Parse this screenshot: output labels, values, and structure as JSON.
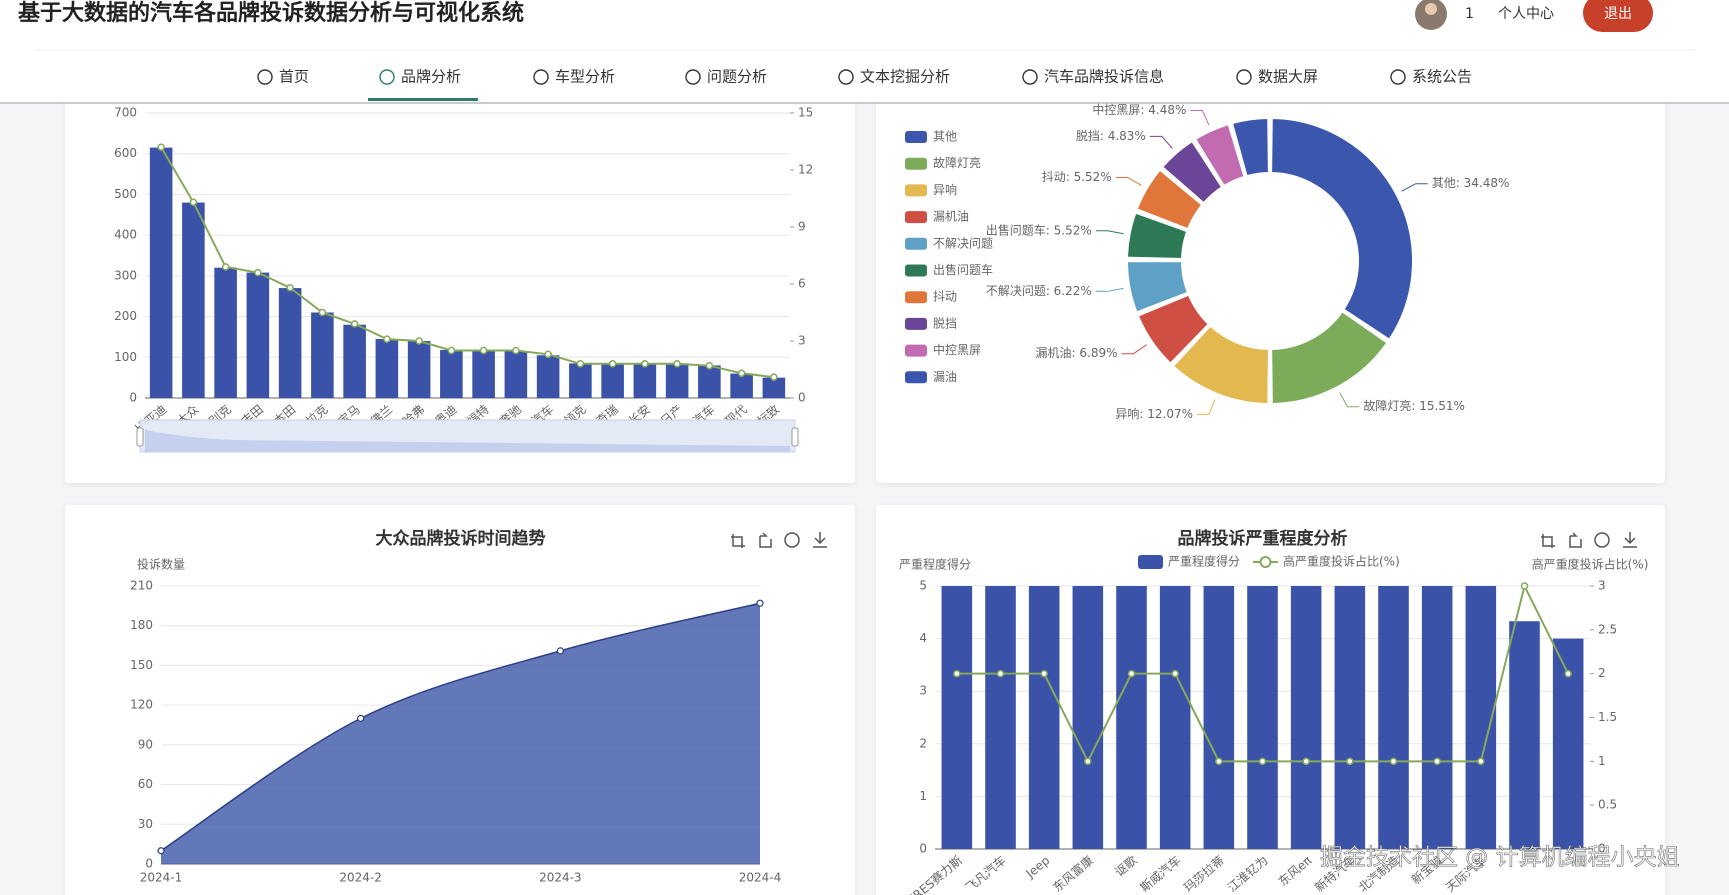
{
  "header": {
    "title": "基于大数据的汽车各品牌投诉数据分析与可视化系统",
    "user": "1",
    "profile": "个人中心",
    "logout": "退出"
  },
  "nav": [
    "首页",
    "品牌分析",
    "车型分析",
    "问题分析",
    "文本挖掘分析",
    "汽车品牌投诉信息",
    "数据大屏",
    "系统公告"
  ],
  "nav_active": 1,
  "watermark": "掘金技术社区 @ 计算机编程小央姐",
  "chart_data": [
    {
      "type": "bar",
      "categories": [
        "比亚迪",
        "大众",
        "别克",
        "丰田",
        "本田",
        "凯迪拉克",
        "宝马",
        "雪佛兰",
        "哈弗",
        "奥迪",
        "福特",
        "奔驰",
        "五菱汽车",
        "领克",
        "奇瑞",
        "长安",
        "日产",
        "吉利汽车",
        "现代",
        "标致"
      ],
      "series": [
        {
          "color": "#3a52a8",
          "values": [
            615,
            480,
            320,
            308,
            270,
            210,
            180,
            145,
            140,
            118,
            115,
            115,
            105,
            85,
            85,
            85,
            85,
            80,
            60,
            50
          ]
        },
        {
          "type": "line",
          "axis": "y2",
          "color": "#86a85a",
          "values": [
            13.2,
            10.3,
            6.9,
            6.6,
            5.8,
            4.5,
            3.9,
            3.1,
            3.0,
            2.5,
            2.5,
            2.5,
            2.3,
            1.8,
            1.8,
            1.8,
            1.8,
            1.7,
            1.3,
            1.1
          ]
        }
      ],
      "ylim": [
        0,
        700
      ],
      "yticks": [
        0,
        100,
        200,
        300,
        400,
        500,
        600,
        700
      ],
      "y2lim": [
        0,
        15
      ],
      "y2ticks": [
        0,
        3,
        6,
        9,
        12,
        15
      ],
      "grid": true,
      "zoom_slider": true
    },
    {
      "type": "pie",
      "hole": true,
      "categories": [
        "其他",
        "故障灯亮",
        "异响",
        "漏机油",
        "不解决问题",
        "出售问题车",
        "抖动",
        "脱挡",
        "中控黑屏",
        "漏油"
      ],
      "values": [
        34.48,
        15.51,
        12.07,
        6.89,
        6.22,
        5.52,
        5.52,
        4.83,
        4.48,
        4.48
      ],
      "value_labels": [
        "其他: 34.48%",
        "故障灯亮: 15.51%",
        "异响: 12.07%",
        "漏机油: 6.89%",
        "不解决问题: 6.22%",
        "出售问题车: 5.52%",
        "抖动: 5.52%",
        "脱挡: 4.83%",
        "中控黑屏: 4.48%",
        null
      ],
      "colors": [
        "#3a57ad",
        "#7cab5a",
        "#e3b84f",
        "#d04f45",
        "#5fa0c6",
        "#2e7a56",
        "#e0763a",
        "#6b4597",
        "#c36bb0",
        "#3a57ad"
      ],
      "legend": "left"
    },
    {
      "type": "area",
      "title": "大众品牌投诉时间趋势",
      "ylabel": "投诉数量",
      "categories": [
        "2024-1",
        "2024-2",
        "2024-3",
        "2024-4"
      ],
      "values": [
        10,
        110,
        161,
        197
      ],
      "color": "#3f5aa8",
      "ylim": [
        0,
        210
      ],
      "yticks": [
        0,
        30,
        60,
        90,
        120,
        150,
        180,
        210
      ],
      "grid": true
    },
    {
      "type": "bar",
      "title": "品牌投诉严重程度分析",
      "ylabel": "严重程度得分",
      "y2label": "高严重度投诉占比(%)",
      "categories": [
        "SERES赛力斯",
        "飞凡汽车",
        "Jeep",
        "东风富康",
        "讴歌",
        "斯威汽车",
        "玛莎拉蒂",
        "江淮钇为",
        "东风eπ",
        "新特汽车",
        "北汽制造",
        "新宝骏",
        "天际汽车",
        null,
        null
      ],
      "series": [
        {
          "name": "严重程度得分",
          "color": "#3a52a8",
          "values": [
            5,
            5,
            5,
            5,
            5,
            5,
            5,
            5,
            5,
            5,
            5,
            5,
            5,
            4.33,
            4
          ]
        },
        {
          "name": "高严重度投诉占比(%)",
          "type": "line",
          "axis": "y2",
          "color": "#86a85a",
          "values": [
            2,
            2,
            2,
            1,
            2,
            2,
            1,
            1,
            1,
            1,
            1,
            1,
            1,
            3,
            2
          ]
        }
      ],
      "ylim": [
        0,
        5
      ],
      "yticks": [
        0,
        1,
        2,
        3,
        4,
        5
      ],
      "y2lim": [
        0,
        3
      ],
      "y2ticks": [
        0,
        0.5,
        1,
        1.5,
        2,
        2.5,
        3
      ],
      "grid": true,
      "legend": "top"
    }
  ]
}
